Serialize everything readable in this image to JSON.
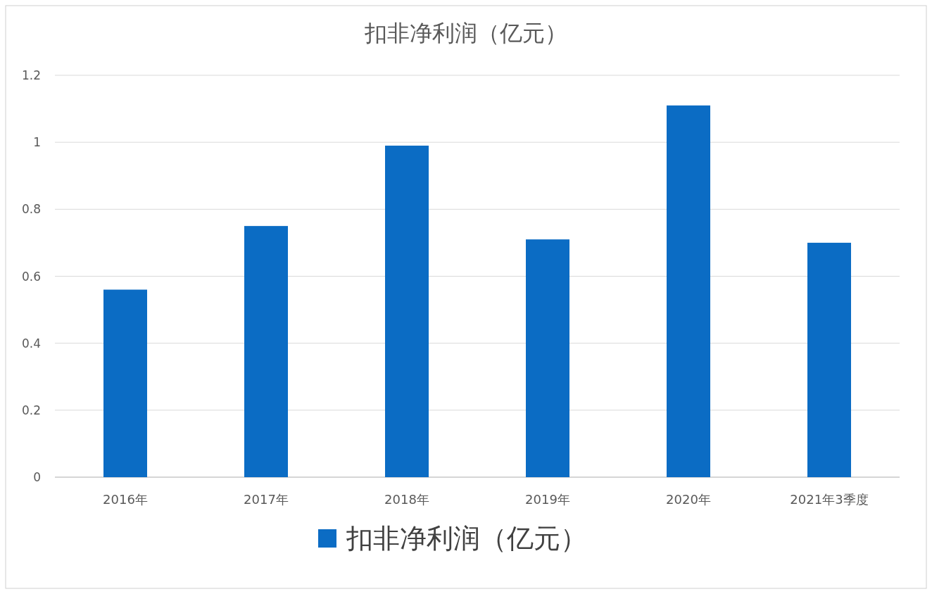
{
  "chart_data": {
    "type": "bar",
    "title": "扣非净利润（亿元）",
    "categories": [
      "2016年",
      "2017年",
      "2018年",
      "2019年",
      "2020年",
      "2021年3季度"
    ],
    "series": [
      {
        "name": "扣非净利润（亿元）",
        "color": "#0b6cc4",
        "values": [
          0.56,
          0.75,
          0.99,
          0.71,
          1.11,
          0.7
        ]
      }
    ],
    "ylim": [
      0,
      1.2
    ],
    "yticks": [
      0,
      0.2,
      0.4,
      0.6,
      0.8,
      1,
      1.2
    ],
    "grid": "y",
    "legend": "bottom"
  }
}
